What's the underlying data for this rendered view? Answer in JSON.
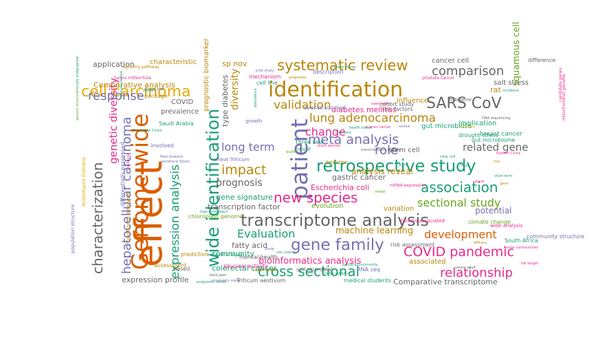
{
  "palette": {
    "orange": "#d95f02",
    "gold": "#b8860b",
    "teal": "#1b9e77",
    "purple": "#7570b3",
    "pink": "#e7298a",
    "green": "#66a61e",
    "grey": "#666666",
    "yellow": "#e6ab02"
  },
  "words": [
    {
      "text": "effect",
      "color": "orange"
    },
    {
      "text": "Genome wide",
      "color": "orange"
    },
    {
      "text": "wide identification",
      "color": "teal"
    },
    {
      "text": "identification",
      "color": "gold"
    },
    {
      "text": "patient",
      "color": "purple"
    },
    {
      "text": "transcriptome analysis",
      "color": "grey"
    },
    {
      "text": "retrospective study",
      "color": "teal"
    },
    {
      "text": "gene family",
      "color": "purple"
    },
    {
      "text": "systematic review",
      "color": "gold"
    },
    {
      "text": "SARS CoV",
      "color": "grey"
    },
    {
      "text": "cross sectional",
      "color": "teal"
    },
    {
      "text": "meta analysis",
      "color": "purple"
    },
    {
      "text": "lung adenocarcinoma",
      "color": "gold"
    },
    {
      "text": "new species",
      "color": "pink"
    },
    {
      "text": "COVID pandemic",
      "color": "pink"
    },
    {
      "text": "relationship",
      "color": "pink"
    },
    {
      "text": "association",
      "color": "teal"
    },
    {
      "text": "cell carcinoma",
      "color": "yellow"
    },
    {
      "text": "characterization",
      "color": "grey"
    },
    {
      "text": "hepatocellular carcinoma",
      "color": "purple"
    },
    {
      "text": "expression analysis",
      "color": "teal"
    },
    {
      "text": "genetic diversity",
      "color": "pink"
    },
    {
      "text": "response",
      "color": "purple"
    },
    {
      "text": "impact",
      "color": "gold"
    },
    {
      "text": "validation",
      "color": "gold"
    },
    {
      "text": "comparison",
      "color": "grey"
    },
    {
      "text": "development",
      "color": "orange"
    },
    {
      "text": "sectional study",
      "color": "green"
    },
    {
      "text": "role",
      "color": "purple"
    },
    {
      "text": "change",
      "color": "pink"
    },
    {
      "text": "related gene",
      "color": "grey"
    },
    {
      "text": "long term",
      "color": "purple"
    },
    {
      "text": "Evaluation",
      "color": "teal"
    },
    {
      "text": "bioinformatics analysis",
      "color": "pink"
    },
    {
      "text": "squamous cell",
      "color": "green"
    },
    {
      "text": "diversity",
      "color": "gold"
    },
    {
      "text": "prognosis",
      "color": "grey"
    },
    {
      "text": "machine learning",
      "color": "gold"
    },
    {
      "text": "application",
      "color": "grey"
    },
    {
      "text": "Comparative analysis",
      "color": "gold"
    },
    {
      "text": "analysis reveal",
      "color": "gold"
    },
    {
      "text": "community",
      "color": "teal"
    },
    {
      "text": "gene signature",
      "color": "teal"
    },
    {
      "text": "Escherichia coli",
      "color": "pink"
    },
    {
      "text": "gastric cancer",
      "color": "grey"
    },
    {
      "text": "stem cell",
      "color": "grey"
    },
    {
      "text": "influence",
      "color": "gold"
    },
    {
      "text": "implication",
      "color": "teal"
    },
    {
      "text": "diabetes mellitus",
      "color": "pink"
    },
    {
      "text": "transcription factor",
      "color": "grey"
    },
    {
      "text": "expression profile",
      "color": "grey"
    },
    {
      "text": "Comparative transcriptome",
      "color": "grey"
    },
    {
      "text": "colorectal cancer",
      "color": "teal"
    },
    {
      "text": "fatty acid",
      "color": "grey"
    },
    {
      "text": "evolution",
      "color": "green"
    },
    {
      "text": "variation",
      "color": "gold"
    },
    {
      "text": "potential",
      "color": "purple"
    },
    {
      "text": "associated",
      "color": "gold"
    },
    {
      "text": "type diabetes",
      "color": "grey"
    },
    {
      "text": "prognostic biomarker",
      "color": "gold"
    },
    {
      "text": "COVID",
      "color": "grey"
    },
    {
      "text": "prevalence",
      "color": "grey"
    },
    {
      "text": "characteristic",
      "color": "gold"
    },
    {
      "text": "sp nov",
      "color": "gold"
    },
    {
      "text": "salt stress",
      "color": "grey"
    },
    {
      "text": "cancer cell",
      "color": "grey"
    },
    {
      "text": "rat",
      "color": "gold"
    },
    {
      "text": "breast cancer",
      "color": "teal"
    },
    {
      "text": "gut microbiota",
      "color": "teal"
    },
    {
      "text": "gut microbiome",
      "color": "teal"
    },
    {
      "text": "hub gene",
      "color": "grey"
    },
    {
      "text": "risk factors",
      "color": "grey"
    },
    {
      "text": "cohort study",
      "color": "grey"
    },
    {
      "text": "overall survival",
      "color": "purple"
    },
    {
      "text": "mechanism",
      "color": "pink"
    },
    {
      "text": "cell line",
      "color": "teal"
    },
    {
      "text": "description",
      "color": "purple"
    },
    {
      "text": "package",
      "color": "gold"
    },
    {
      "text": "Saudi Arabia",
      "color": "teal"
    },
    {
      "text": "involved",
      "color": "purple"
    },
    {
      "text": "chloroplast genome",
      "color": "green"
    },
    {
      "text": "functional analysis",
      "color": "gold"
    },
    {
      "text": "differentially expressed",
      "color": "purple"
    },
    {
      "text": "Arabidopsis thaliana",
      "color": "yellow"
    },
    {
      "text": "population structure",
      "color": "purple"
    },
    {
      "text": "climate change",
      "color": "green"
    },
    {
      "text": "risk assessment",
      "color": "grey"
    },
    {
      "text": "South Africa",
      "color": "teal"
    },
    {
      "text": "community structure",
      "color": "purple"
    },
    {
      "text": "wide analysis",
      "color": "pink"
    },
    {
      "text": "factors associated",
      "color": "pink"
    },
    {
      "text": "drought stress",
      "color": "teal"
    },
    {
      "text": "novel",
      "color": "teal"
    },
    {
      "text": "Three new",
      "color": "teal"
    },
    {
      "text": "growth",
      "color": "purple"
    },
    {
      "text": "detection",
      "color": "gold"
    },
    {
      "text": "mental health",
      "color": "grey"
    },
    {
      "text": "physical activity",
      "color": "pink"
    },
    {
      "text": "prediction",
      "color": "gold"
    },
    {
      "text": "assessment",
      "color": "gold"
    },
    {
      "text": "based",
      "color": "grey"
    },
    {
      "text": "RNA seq",
      "color": "purple"
    },
    {
      "text": "soil microbial",
      "color": "grey"
    },
    {
      "text": "medical students",
      "color": "teal"
    },
    {
      "text": "Triticum aestivum",
      "color": "grey"
    },
    {
      "text": "wheat Triticum",
      "color": "purple"
    },
    {
      "text": "mRNA expression",
      "color": "pink"
    },
    {
      "text": "network analysis",
      "color": "teal"
    },
    {
      "text": "signaling pathway",
      "color": "gold"
    },
    {
      "text": "Salvia miltiorrhiza",
      "color": "pink"
    },
    {
      "text": "critically endangered",
      "color": "teal"
    },
    {
      "text": "genetic structure",
      "color": "green"
    },
    {
      "text": "mitochondrial genome",
      "color": "pink"
    },
    {
      "text": "candidate genes",
      "color": "pink"
    },
    {
      "text": "difference",
      "color": "grey"
    },
    {
      "text": "prostate cancer",
      "color": "pink"
    },
    {
      "text": "incidence",
      "color": "teal"
    },
    {
      "text": "Southwest China",
      "color": "teal"
    },
    {
      "text": "New Zealand",
      "color": "purple"
    },
    {
      "text": "peripheral blood",
      "color": "purple"
    },
    {
      "text": "clinical trial",
      "color": "grey"
    },
    {
      "text": "high throughput",
      "color": "teal"
    },
    {
      "text": "miRNA mRNA",
      "color": "teal"
    },
    {
      "text": "prognostic value",
      "color": "purple"
    },
    {
      "text": "prognostic model",
      "color": "teal"
    },
    {
      "text": "bacterial community",
      "color": "teal"
    },
    {
      "text": "ovarian cancer",
      "color": "pink"
    },
    {
      "text": "health status",
      "color": "teal"
    },
    {
      "text": "plant species",
      "color": "pink"
    },
    {
      "text": "short term",
      "color": "teal"
    },
    {
      "text": "non coding",
      "color": "teal"
    },
    {
      "text": "young adult",
      "color": "grey"
    },
    {
      "text": "full length",
      "color": "pink"
    },
    {
      "text": "efficacy",
      "color": "gold"
    },
    {
      "text": "fungal communities",
      "color": "pink"
    },
    {
      "text": "behavior",
      "color": "pink"
    },
    {
      "text": "sativa L",
      "color": "teal"
    },
    {
      "text": "immune related",
      "color": "teal"
    },
    {
      "text": "abundance",
      "color": "teal"
    },
    {
      "text": "pilot study",
      "color": "purple"
    },
    {
      "text": "transcriptomic analysis",
      "color": "grey"
    },
    {
      "text": "large scale",
      "color": "gold"
    },
    {
      "text": "back pain",
      "color": "grey"
    },
    {
      "text": "quality",
      "color": "green"
    },
    {
      "text": "DNA sequencing",
      "color": "grey"
    },
    {
      "text": "Eastern China",
      "color": "pink"
    },
    {
      "text": "structure",
      "color": "yellow"
    },
    {
      "text": "clear cell",
      "color": "teal"
    },
    {
      "text": "case report",
      "color": "pink"
    },
    {
      "text": "solute carrier",
      "color": "teal"
    },
    {
      "text": "prognostic",
      "color": "gold"
    },
    {
      "text": "review",
      "color": "purple"
    },
    {
      "text": "study",
      "color": "purple"
    },
    {
      "text": "comment",
      "color": "teal"
    },
    {
      "text": "plant",
      "color": "teal"
    },
    {
      "text": "rice",
      "color": "gold"
    },
    {
      "text": "cancer",
      "color": "pink"
    },
    {
      "text": "model",
      "color": "green"
    },
    {
      "text": "gene",
      "color": "gold"
    },
    {
      "text": "trial",
      "color": "teal"
    },
    {
      "text": "China",
      "color": "green"
    }
  ]
}
